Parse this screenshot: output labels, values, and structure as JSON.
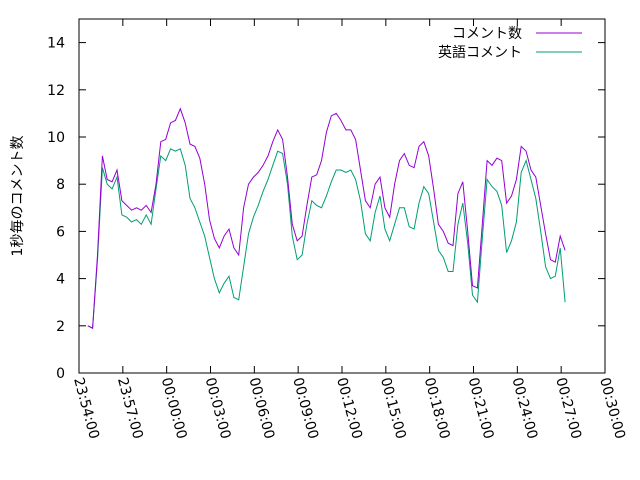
{
  "chart_data": {
    "type": "line",
    "ylabel": "1秒毎のコメント数",
    "ylim": [
      0,
      15
    ],
    "yticks": [
      0,
      2,
      4,
      6,
      8,
      10,
      12,
      14
    ],
    "x_start": "23:54:00",
    "x_end": "00:30:00",
    "xticks": [
      "23:54:00",
      "23:57:00",
      "00:00:00",
      "00:03:00",
      "00:06:00",
      "00:09:00",
      "00:12:00",
      "00:15:00",
      "00:18:00",
      "00:21:00",
      "00:24:00",
      "00:27:00",
      "00:30:00"
    ],
    "x_step_seconds": 20,
    "grid": false,
    "legend_position": "top-right",
    "series": [
      {
        "name": "コメント数",
        "color": "#9400d3",
        "values": [
          2.0,
          1.9,
          5.0,
          9.2,
          8.2,
          8.1,
          8.6,
          7.3,
          7.1,
          6.9,
          7.0,
          6.9,
          7.1,
          6.8,
          8.0,
          9.8,
          9.9,
          10.6,
          10.7,
          11.2,
          10.6,
          9.7,
          9.6,
          9.1,
          8.0,
          6.5,
          5.7,
          5.3,
          5.8,
          6.1,
          5.3,
          5.0,
          7.0,
          8.0,
          8.3,
          8.5,
          8.8,
          9.2,
          9.8,
          10.3,
          9.9,
          8.3,
          6.3,
          5.6,
          5.8,
          7.1,
          8.3,
          8.4,
          9.0,
          10.2,
          10.9,
          11.0,
          10.7,
          10.3,
          10.3,
          9.9,
          8.6,
          7.3,
          7.0,
          8.0,
          8.3,
          7.0,
          6.6,
          8.0,
          9.0,
          9.3,
          8.8,
          8.7,
          9.6,
          9.8,
          9.2,
          7.8,
          6.3,
          6.0,
          5.5,
          5.4,
          7.6,
          8.1,
          6.0,
          3.7,
          3.6,
          6.3,
          9.0,
          8.8,
          9.1,
          9.0,
          7.2,
          7.5,
          8.2,
          9.6,
          9.4,
          8.6,
          8.3,
          7.1,
          5.9,
          4.8,
          4.7,
          5.8,
          5.2
        ]
      },
      {
        "name": "英語コメント",
        "color": "#009e73",
        "values": [
          2.0,
          1.9,
          4.8,
          8.7,
          8.0,
          7.8,
          8.3,
          6.7,
          6.6,
          6.4,
          6.5,
          6.3,
          6.7,
          6.3,
          7.8,
          9.2,
          9.0,
          9.5,
          9.4,
          9.5,
          8.8,
          7.4,
          7.0,
          6.4,
          5.8,
          4.9,
          4.0,
          3.4,
          3.8,
          4.1,
          3.2,
          3.1,
          4.5,
          5.9,
          6.6,
          7.1,
          7.7,
          8.2,
          8.8,
          9.4,
          9.3,
          8.0,
          5.8,
          4.8,
          5.0,
          6.3,
          7.3,
          7.1,
          7.0,
          7.5,
          8.1,
          8.6,
          8.6,
          8.5,
          8.6,
          8.2,
          7.3,
          5.9,
          5.6,
          6.8,
          7.5,
          6.1,
          5.6,
          6.3,
          7.0,
          7.0,
          6.2,
          6.1,
          7.2,
          7.9,
          7.6,
          6.4,
          5.2,
          4.9,
          4.3,
          4.3,
          6.3,
          7.2,
          5.5,
          3.3,
          3.0,
          5.7,
          8.2,
          7.9,
          7.7,
          7.1,
          5.1,
          5.6,
          6.4,
          8.5,
          9.0,
          8.2,
          7.4,
          6.0,
          4.5,
          4.0,
          4.1,
          5.3,
          3.0
        ]
      }
    ]
  }
}
